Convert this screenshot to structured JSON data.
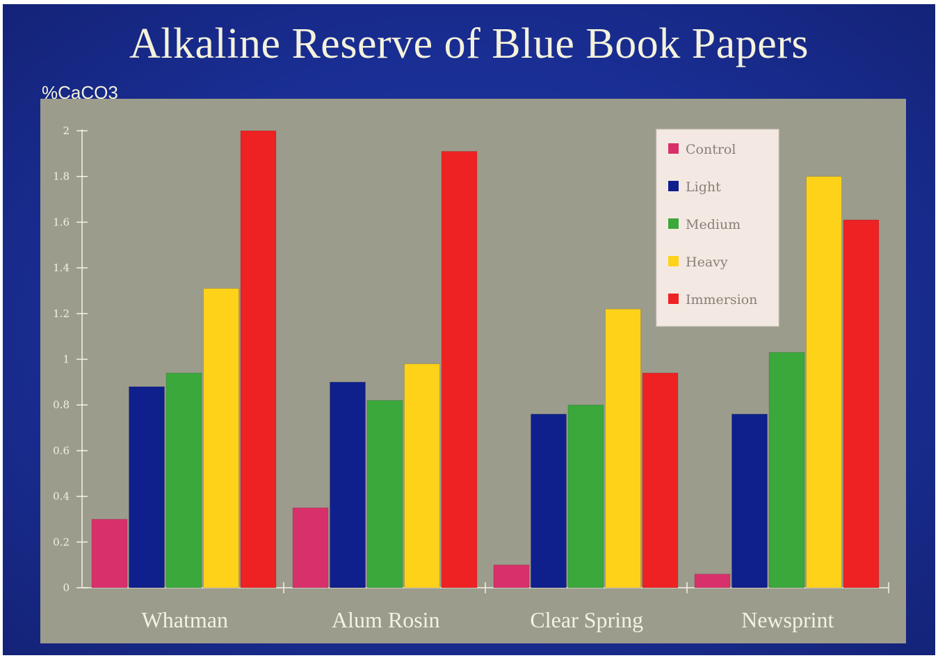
{
  "title": "Alkaline Reserve of Blue Book Papers",
  "colors": {
    "slide_background": "#1a2f96",
    "plot_background": "#9c9c8c",
    "legend_background": "#f3e9e2",
    "text": "#f4f2dc"
  },
  "chart_data": {
    "type": "bar",
    "title": "Alkaline Reserve of Blue Book Papers",
    "xlabel": "",
    "ylabel": "%CaCO3",
    "ylim": [
      0,
      2
    ],
    "yticks": [
      "0",
      "0.2",
      "0.4",
      "0.6",
      "0.8",
      "1",
      "1.2",
      "1.4",
      "1.6",
      "1.8",
      "2"
    ],
    "categories": [
      "Whatman",
      "Alum Rosin",
      "Clear Spring",
      "Newsprint"
    ],
    "legend_position": "top-right",
    "grid": false,
    "series": [
      {
        "name": "Control",
        "color": "#d8306a",
        "values": [
          0.3,
          0.35,
          0.1,
          0.06
        ]
      },
      {
        "name": "Light",
        "color": "#0f1f8c",
        "values": [
          0.88,
          0.9,
          0.76,
          0.76
        ]
      },
      {
        "name": "Medium",
        "color": "#3aa83a",
        "values": [
          0.94,
          0.82,
          0.8,
          1.03
        ]
      },
      {
        "name": "Heavy",
        "color": "#ffd21a",
        "values": [
          1.31,
          0.98,
          1.22,
          1.8
        ]
      },
      {
        "name": "Immersion",
        "color": "#ee2222",
        "values": [
          2.0,
          1.91,
          0.94,
          1.61
        ]
      }
    ]
  }
}
